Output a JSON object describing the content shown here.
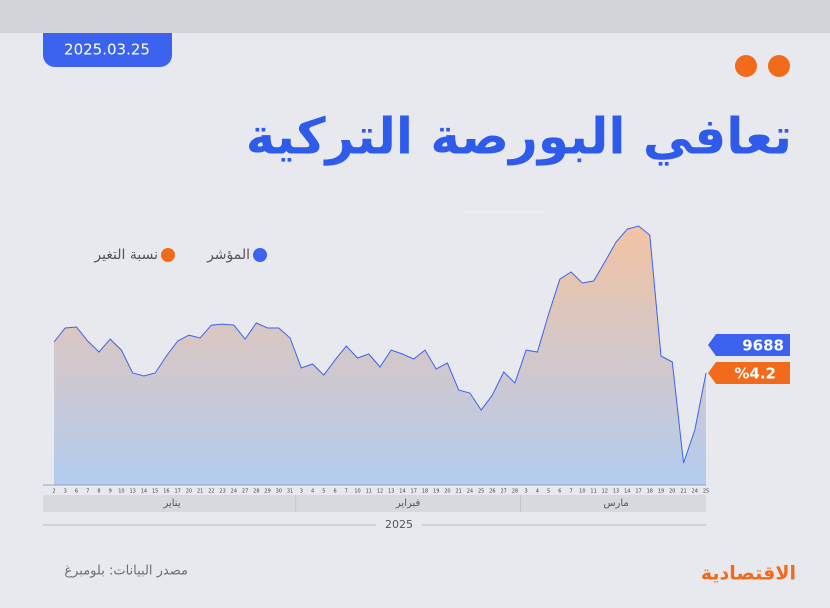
{
  "chart_data": {
    "type": "area",
    "date": "2025.03.25",
    "title": "تعافي البورصة التركية",
    "source": "مصدر البيانات: بلومبرغ",
    "brand": "الاقتصادية",
    "year": "2025",
    "months": [
      "يناير",
      "فبراير",
      "مارس"
    ],
    "categories": [
      "2",
      "3",
      "6",
      "7",
      "8",
      "9",
      "10",
      "13",
      "14",
      "15",
      "16",
      "17",
      "20",
      "21",
      "22",
      "23",
      "24",
      "27",
      "28",
      "29",
      "30",
      "31",
      "3",
      "4",
      "5",
      "6",
      "7",
      "10",
      "11",
      "12",
      "13",
      "14",
      "17",
      "18",
      "19",
      "20",
      "21",
      "24",
      "25",
      "26",
      "27",
      "28",
      "3",
      "4",
      "5",
      "6",
      "7",
      "10",
      "11",
      "12",
      "13",
      "14",
      "17",
      "18",
      "19",
      "20",
      "21",
      "24",
      "25"
    ],
    "series": [
      {
        "name": "المؤشر",
        "color": "#3b63f0",
        "values": [
          9930,
          10039,
          10047,
          9938,
          9852,
          9953,
          9867,
          9688,
          9665,
          9688,
          9821,
          9938,
          9984,
          9961,
          10062,
          10070,
          10062,
          9953,
          10078,
          10039,
          10039,
          9961,
          9727,
          9758,
          9672,
          9789,
          9899,
          9805,
          9836,
          9735,
          9867,
          9836,
          9797,
          9867,
          9719,
          9766,
          9555,
          9532,
          9399,
          9516,
          9696,
          9610,
          9867,
          9852,
          10148,
          10421,
          10476,
          10390,
          10406,
          10554,
          10710,
          10811,
          10835,
          10764,
          9821,
          9774,
          8986,
          9243,
          9688
        ]
      }
    ],
    "change": {
      "name": "نسبة التغير",
      "color": "#f26a1b",
      "value": 4.2,
      "label": "%4.2"
    }
  }
}
